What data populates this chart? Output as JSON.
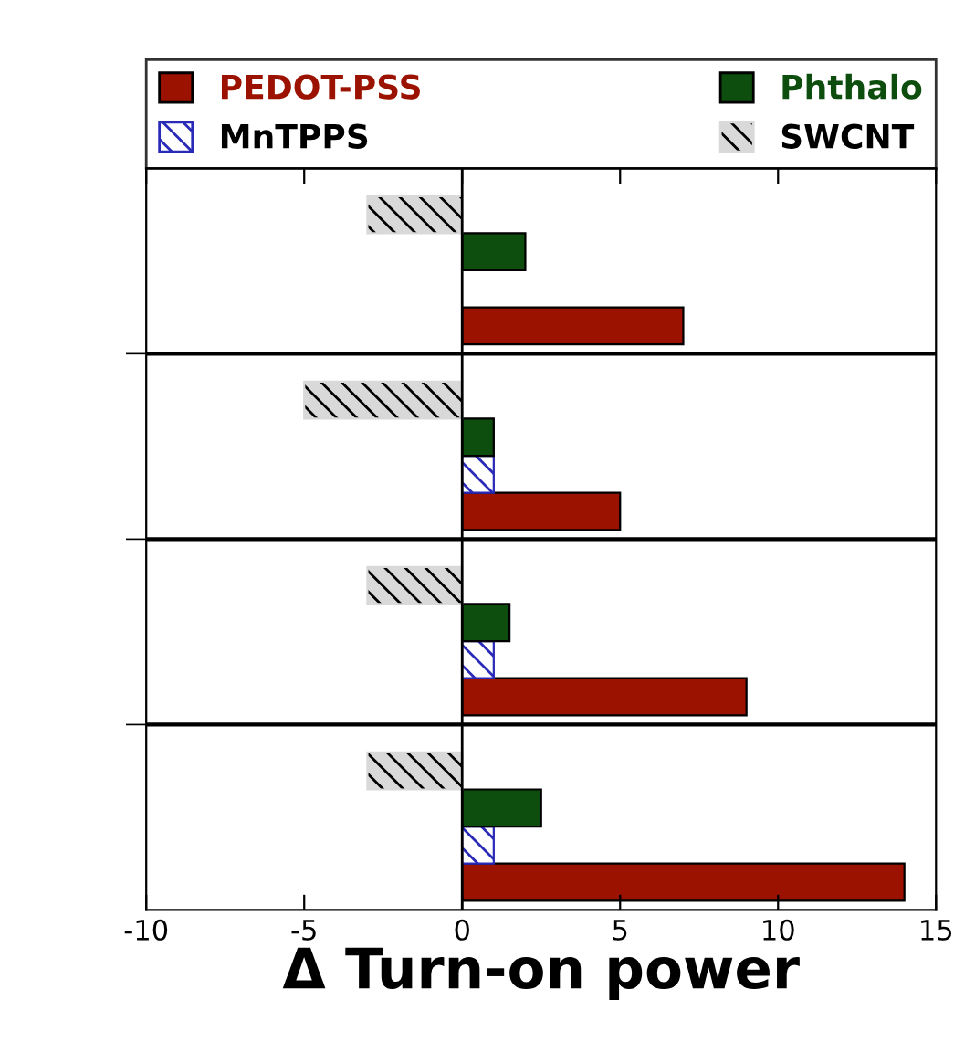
{
  "chart_data": {
    "type": "bar",
    "orientation": "horizontal",
    "xlabel": "Δ Turn-on power",
    "categories": [
      null,
      null,
      null,
      null
    ],
    "series": [
      {
        "name": "PEDOT-PSS",
        "color": "#9b1200",
        "values": [
          7,
          5,
          9,
          14
        ]
      },
      {
        "name": "MnTPPS",
        "color": "#2a2ab8",
        "values": [
          null,
          1,
          1,
          1
        ]
      },
      {
        "name": "Phthalo",
        "color": "#0d4d0d",
        "values": [
          2,
          1,
          1.5,
          2.5
        ]
      },
      {
        "name": "SWCNT",
        "color": "#d9d9d9",
        "values": [
          -3,
          -5,
          -3,
          -3
        ]
      }
    ],
    "xlim": [
      -10,
      15
    ],
    "xticks": [
      -10,
      -5,
      0,
      5,
      10,
      15
    ],
    "grid": "y",
    "legend": "top"
  }
}
